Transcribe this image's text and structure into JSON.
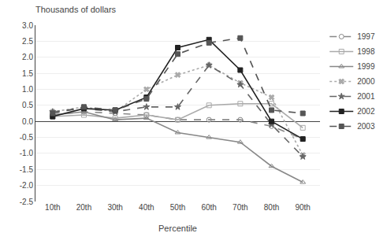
{
  "chart_data": {
    "type": "line",
    "title": "Thousands of dollars",
    "x_label": "Percentile",
    "categories": [
      "10th",
      "20th",
      "30th",
      "40th",
      "50th",
      "60th",
      "70th",
      "80th",
      "90th"
    ],
    "series": [
      {
        "name": "1997",
        "color": "#888888",
        "marker": "circle-open",
        "line_style": "dashed",
        "values": [
          0.2,
          0.3,
          0.25,
          0.2,
          0.05,
          0.05,
          0.05,
          -0.15,
          -0.55
        ]
      },
      {
        "name": "1998",
        "color": "#aaaaaa",
        "marker": "square-open",
        "line_style": "solid",
        "values": [
          0.15,
          0.2,
          0.1,
          0.2,
          0.05,
          0.5,
          0.55,
          0.55,
          -0.2
        ]
      },
      {
        "name": "1999",
        "color": "#888888",
        "marker": "triangle-up-open",
        "line_style": "solid",
        "values": [
          0.2,
          0.3,
          0.05,
          0.1,
          -0.35,
          -0.5,
          -0.65,
          -1.4,
          -1.9
        ]
      },
      {
        "name": "2000",
        "color": "#aaaaaa",
        "marker": "x",
        "line_style": "dotted",
        "values": [
          0.3,
          0.45,
          0.3,
          1.0,
          1.45,
          1.75,
          1.2,
          0.75,
          -1.05
        ]
      },
      {
        "name": "2001",
        "color": "#666666",
        "marker": "star",
        "line_style": "dashed",
        "values": [
          0.3,
          0.4,
          0.3,
          0.45,
          0.45,
          1.75,
          1.15,
          -0.1,
          -1.1
        ]
      },
      {
        "name": "2002",
        "color": "#222222",
        "marker": "square",
        "line_style": "solid",
        "values": [
          0.15,
          0.4,
          0.35,
          0.75,
          2.3,
          2.55,
          1.6,
          0.0,
          -0.55
        ]
      },
      {
        "name": "2003",
        "color": "#555555",
        "marker": "square",
        "line_style": "dashed",
        "values": [
          0.25,
          0.45,
          0.35,
          0.7,
          2.1,
          2.45,
          2.6,
          0.35,
          0.25
        ]
      }
    ],
    "ylim": [
      -2.5,
      3.0
    ],
    "yticks": [
      -2.5,
      {
        "value": -2.0,
        "label": "-2.0"
      },
      -1.5,
      {
        "value": -1.0,
        "label": "-1.0"
      },
      -0.5,
      {
        "value": 0.0,
        "label": "0.0"
      },
      0.5,
      {
        "value": 1.0,
        "label": "1.0"
      },
      1.5,
      {
        "value": 2.0,
        "label": "2.0"
      },
      2.5,
      {
        "value": 3.0,
        "label": "3.0"
      }
    ],
    "grid": true,
    "legend": "right"
  }
}
